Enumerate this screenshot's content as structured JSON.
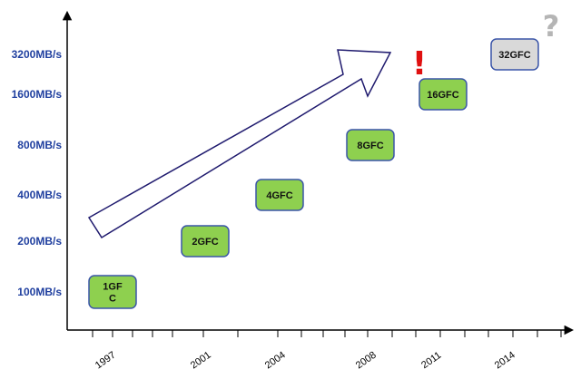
{
  "chart_data": {
    "type": "scatter",
    "title": "",
    "xlabel": "",
    "ylabel": "",
    "x_ticks": [
      "1997",
      "2001",
      "2004",
      "2008",
      "2011",
      "2014"
    ],
    "y_ticks": [
      "100MB/s",
      "200MB/s",
      "400MB/s",
      "800MB/s",
      "1600MB/s",
      "3200MB/s"
    ],
    "y_scale": "log2",
    "grid": false,
    "legend": "none",
    "points": [
      {
        "label_lines": [
          "1GF",
          "C"
        ],
        "x": "1997",
        "y": "100MB/s",
        "status": "released"
      },
      {
        "label_lines": [
          "2GFC"
        ],
        "x": "2001",
        "y": "200MB/s",
        "status": "released"
      },
      {
        "label_lines": [
          "4GFC"
        ],
        "x": "2004",
        "y": "400MB/s",
        "status": "released"
      },
      {
        "label_lines": [
          "8GFC"
        ],
        "x": "2008",
        "y": "800MB/s",
        "status": "released"
      },
      {
        "label_lines": [
          "16GFC"
        ],
        "x": "2011",
        "y": "1600MB/s",
        "status": "released"
      },
      {
        "label_lines": [
          "32GFC"
        ],
        "x": "2014",
        "y": "3200MB/s",
        "status": "future"
      }
    ],
    "annotations": {
      "exclamation": "!",
      "question": "?"
    },
    "trend_arrow": {
      "direction": "up-right",
      "fill": "#ffffff",
      "stroke": "#1f1a6e"
    }
  },
  "colors": {
    "axis": "#000000",
    "ytick_text": "#1f3f9f",
    "xtick_text": "#000000",
    "released_fill": "#8ed04f",
    "released_stroke": "#3a55a8",
    "future_fill": "#d9d9d9",
    "future_stroke": "#3a55a8",
    "exclamation": "#e01010",
    "question": "#b5b5b5"
  }
}
